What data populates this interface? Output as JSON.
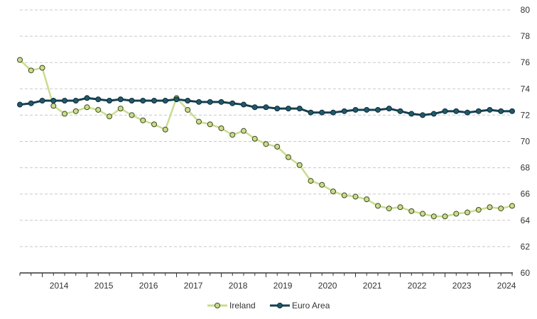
{
  "chart_data": {
    "type": "line",
    "title": "",
    "xlabel": "",
    "ylabel": "",
    "ylim": [
      60,
      80
    ],
    "yticks": [
      60,
      62,
      64,
      66,
      68,
      70,
      72,
      74,
      76,
      78,
      80
    ],
    "x_tick_labels": [
      "2014",
      "2015",
      "2016",
      "2017",
      "2018",
      "2019",
      "2020",
      "2021",
      "2022",
      "2023",
      "2024"
    ],
    "x_start": "2013 Q3",
    "frequency": "quarterly",
    "grid": true,
    "legend_position": "bottom-center",
    "series": [
      {
        "name": "Ireland",
        "color": "#c9dc8f",
        "marker_fill": "#c9dc8f",
        "marker_edge": "#3d4a1c",
        "values": [
          76.2,
          75.4,
          75.6,
          72.7,
          72.1,
          72.3,
          72.6,
          72.4,
          71.9,
          72.5,
          72.0,
          71.6,
          71.3,
          70.9,
          73.3,
          72.4,
          71.5,
          71.3,
          71.0,
          70.5,
          70.8,
          70.2,
          69.8,
          69.6,
          68.8,
          68.2,
          67.0,
          66.7,
          66.2,
          65.9,
          65.8,
          65.6,
          65.1,
          64.9,
          65.0,
          64.7,
          64.5,
          64.3,
          64.3,
          64.5,
          64.6,
          64.8,
          65.0,
          64.9,
          65.1
        ]
      },
      {
        "name": "Euro Area",
        "color": "#173f4f",
        "marker_fill": "#1f5a6b",
        "marker_edge": "#0d2a35",
        "values": [
          72.8,
          72.9,
          73.1,
          73.1,
          73.1,
          73.1,
          73.3,
          73.2,
          73.1,
          73.2,
          73.1,
          73.1,
          73.1,
          73.1,
          73.2,
          73.1,
          73.0,
          73.0,
          73.0,
          72.9,
          72.8,
          72.6,
          72.6,
          72.5,
          72.5,
          72.5,
          72.2,
          72.2,
          72.2,
          72.3,
          72.4,
          72.4,
          72.4,
          72.5,
          72.3,
          72.1,
          72.0,
          72.1,
          72.3,
          72.3,
          72.2,
          72.3,
          72.4,
          72.3,
          72.3
        ]
      }
    ]
  }
}
